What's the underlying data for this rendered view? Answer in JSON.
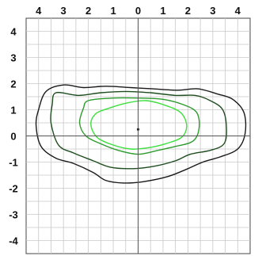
{
  "chart_data": {
    "type": "line",
    "title": "",
    "xlabel": "",
    "ylabel": "",
    "xlim": [
      -4.5,
      4.5
    ],
    "ylim": [
      -4.5,
      4.5
    ],
    "grid": true,
    "x_ticks": [
      -4,
      -3,
      -2,
      -1,
      0,
      1,
      2,
      3,
      4
    ],
    "x_tick_labels": [
      "4",
      "3",
      "2",
      "1",
      "0",
      "1",
      "2",
      "3",
      "4"
    ],
    "y_ticks": [
      4,
      3,
      2,
      1,
      0,
      -1,
      -2,
      -3,
      -4
    ],
    "y_tick_labels": [
      "4",
      "3",
      "2",
      "1",
      "0",
      "-1",
      "-2",
      "-3",
      "-4"
    ],
    "center_point": {
      "x": 0,
      "y": 0.25
    },
    "series": [
      {
        "color": "#1a1a1a",
        "points": [
          [
            -3.7,
            1.7
          ],
          [
            -3.0,
            1.95
          ],
          [
            -2.2,
            1.85
          ],
          [
            -1.3,
            1.9
          ],
          [
            -0.3,
            1.85
          ],
          [
            0.6,
            1.8
          ],
          [
            1.6,
            1.75
          ],
          [
            2.4,
            1.8
          ],
          [
            3.2,
            1.6
          ],
          [
            3.8,
            1.4
          ],
          [
            4.25,
            0.9
          ],
          [
            4.3,
            0.1
          ],
          [
            4.0,
            -0.5
          ],
          [
            3.3,
            -0.8
          ],
          [
            2.6,
            -1.0
          ],
          [
            2.0,
            -1.25
          ],
          [
            1.2,
            -1.55
          ],
          [
            0.2,
            -1.75
          ],
          [
            -0.6,
            -1.8
          ],
          [
            -1.3,
            -1.7
          ],
          [
            -1.8,
            -1.4
          ],
          [
            -2.6,
            -1.05
          ],
          [
            -3.3,
            -0.85
          ],
          [
            -3.9,
            -0.4
          ],
          [
            -4.1,
            0.4
          ],
          [
            -4.0,
            1.0
          ]
        ]
      },
      {
        "color": "#1f4d1f",
        "points": [
          [
            -3.3,
            1.65
          ],
          [
            -2.4,
            1.55
          ],
          [
            -1.5,
            1.65
          ],
          [
            -0.5,
            1.7
          ],
          [
            0.5,
            1.65
          ],
          [
            1.5,
            1.55
          ],
          [
            2.3,
            1.55
          ],
          [
            2.9,
            1.35
          ],
          [
            3.4,
            1.0
          ],
          [
            3.55,
            0.3
          ],
          [
            3.45,
            -0.3
          ],
          [
            2.9,
            -0.55
          ],
          [
            2.1,
            -0.7
          ],
          [
            1.5,
            -0.95
          ],
          [
            0.7,
            -1.15
          ],
          [
            -0.2,
            -1.25
          ],
          [
            -1.1,
            -1.2
          ],
          [
            -1.8,
            -0.95
          ],
          [
            -2.6,
            -0.65
          ],
          [
            -3.2,
            -0.35
          ],
          [
            -3.5,
            0.5
          ],
          [
            -3.45,
            1.2
          ]
        ]
      },
      {
        "color": "#2e9b2e",
        "points": [
          [
            -2.0,
            1.35
          ],
          [
            -1.0,
            1.45
          ],
          [
            0.0,
            1.45
          ],
          [
            1.0,
            1.4
          ],
          [
            1.8,
            1.2
          ],
          [
            2.35,
            0.9
          ],
          [
            2.45,
            0.3
          ],
          [
            2.2,
            -0.2
          ],
          [
            1.5,
            -0.4
          ],
          [
            0.8,
            -0.55
          ],
          [
            0.0,
            -0.7
          ],
          [
            -0.8,
            -0.55
          ],
          [
            -1.5,
            -0.3
          ],
          [
            -2.1,
            0.0
          ],
          [
            -2.35,
            0.5
          ],
          [
            -2.2,
            1.05
          ]
        ]
      },
      {
        "color": "#3ddf3d",
        "points": [
          [
            -1.2,
            1.05
          ],
          [
            -0.5,
            1.25
          ],
          [
            0.3,
            1.35
          ],
          [
            1.0,
            1.2
          ],
          [
            1.7,
            0.9
          ],
          [
            1.95,
            0.4
          ],
          [
            1.75,
            -0.05
          ],
          [
            1.1,
            -0.3
          ],
          [
            0.4,
            -0.45
          ],
          [
            -0.3,
            -0.5
          ],
          [
            -1.0,
            -0.35
          ],
          [
            -1.65,
            -0.05
          ],
          [
            -1.9,
            0.45
          ],
          [
            -1.7,
            0.85
          ]
        ]
      }
    ]
  }
}
